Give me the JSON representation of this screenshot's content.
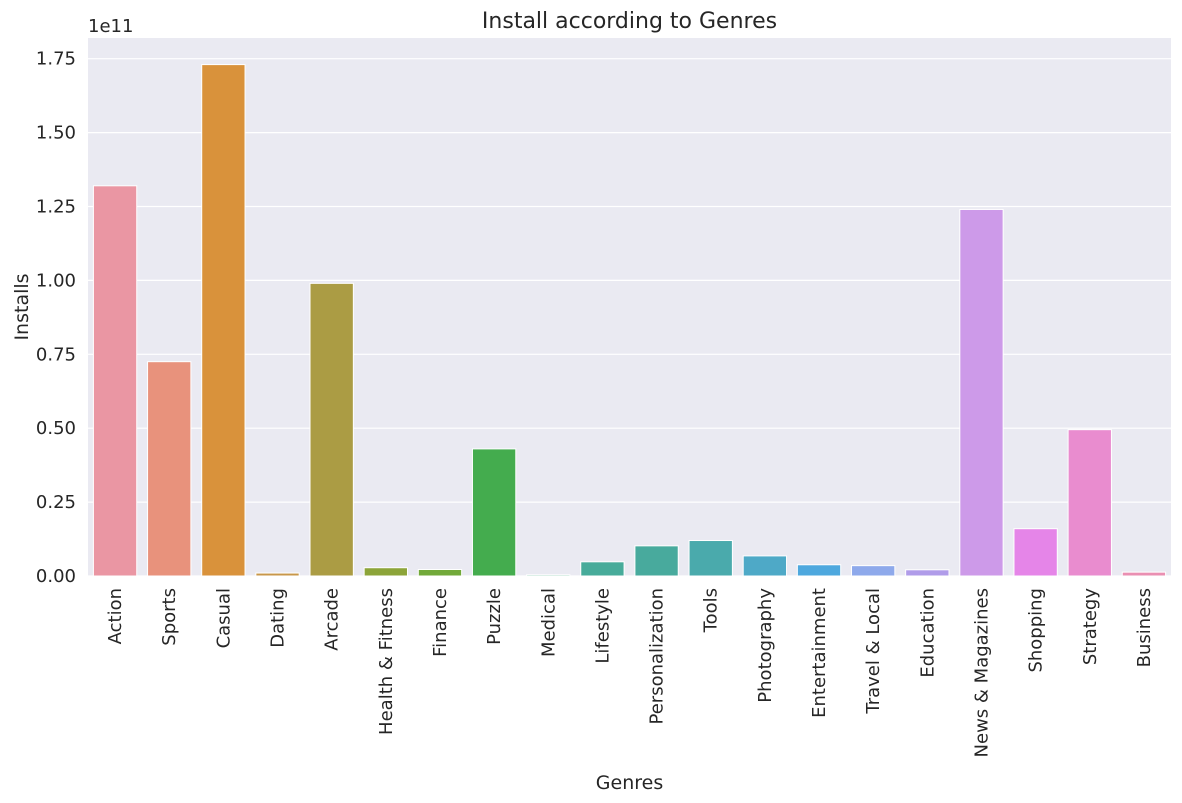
{
  "chart_data": {
    "type": "bar",
    "title": "Install according to Genres",
    "xlabel": "Genres",
    "ylabel": "Installs",
    "y_offset_text": "1e11",
    "y_scale": 100000000000,
    "ylim": [
      0,
      1.82
    ],
    "yticks": [
      0.0,
      0.25,
      0.5,
      0.75,
      1.0,
      1.25,
      1.5,
      1.75
    ],
    "ytick_labels": [
      "0.00",
      "0.25",
      "0.50",
      "0.75",
      "1.00",
      "1.25",
      "1.50",
      "1.75"
    ],
    "grid": true,
    "categories": [
      "Action",
      "Sports",
      "Casual",
      "Dating",
      "Arcade",
      "Health & Fitness",
      "Finance",
      "Puzzle",
      "Medical",
      "Lifestyle",
      "Personalization",
      "Tools",
      "Photography",
      "Entertainment",
      "Travel & Local",
      "Education",
      "News & Magazines",
      "Shopping",
      "Strategy",
      "Business"
    ],
    "values": [
      1.32,
      0.725,
      1.73,
      0.01,
      0.99,
      0.028,
      0.022,
      0.43,
      0.004,
      0.048,
      0.102,
      0.12,
      0.068,
      0.038,
      0.035,
      0.021,
      1.24,
      0.16,
      0.495,
      0.013
    ],
    "colors": [
      "#ea96a3",
      "#e8927c",
      "#d9923b",
      "#c8974a",
      "#ab9c44",
      "#8ca439",
      "#72a93a",
      "#44ac4e",
      "#45ae82",
      "#47ab9a",
      "#48aa9d",
      "#4aaaac",
      "#4ea9c7",
      "#4ea8de",
      "#8ea9eb",
      "#b09ce9",
      "#cd9ae9",
      "#e585e8",
      "#e98ccf",
      "#ea8fb2"
    ]
  }
}
